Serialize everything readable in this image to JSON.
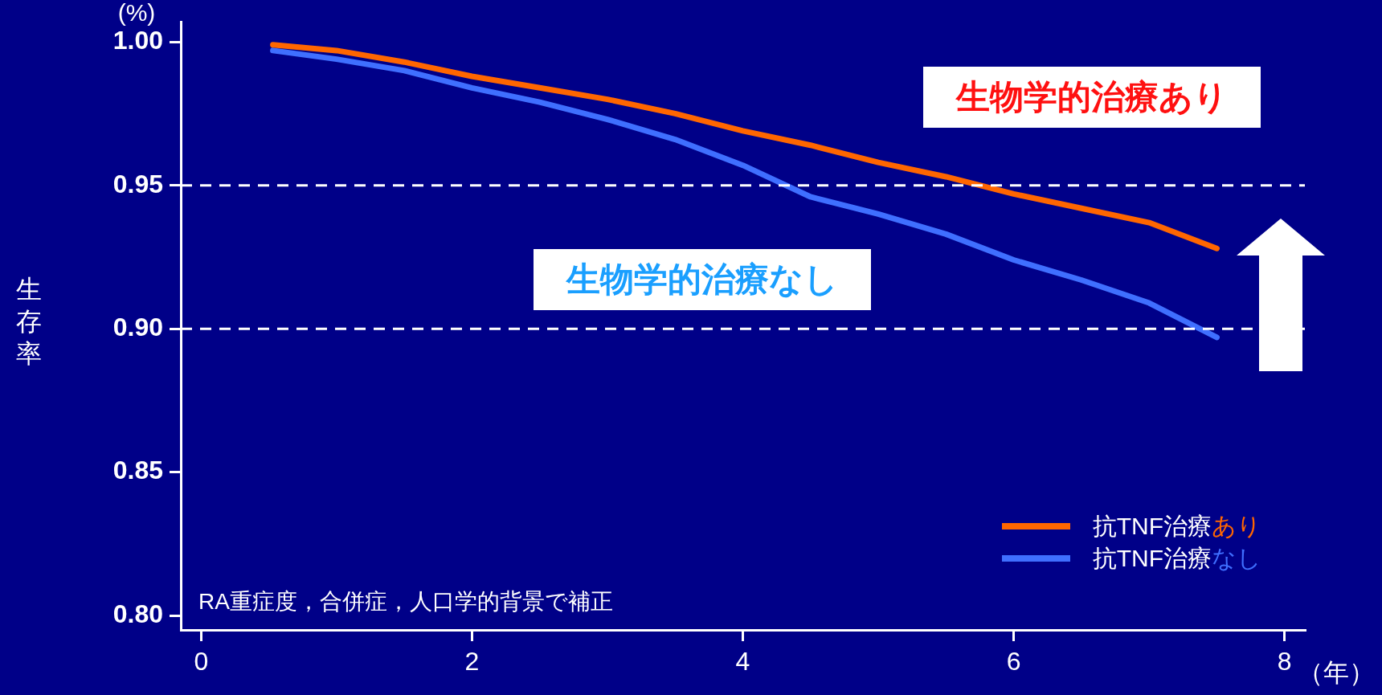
{
  "chart_data": {
    "type": "line",
    "ylabel": "生存率",
    "xlabel": "（年）",
    "x": [
      0.53,
      1.0,
      1.5,
      2,
      2.5,
      3,
      3.5,
      4,
      4.5,
      5,
      5.5,
      6,
      6.5,
      7,
      7.5
    ],
    "series": [
      {
        "name": "抗TNF治療あり",
        "color": "#ff6600",
        "values": [
          0.999,
          0.997,
          0.993,
          0.988,
          0.984,
          0.98,
          0.975,
          0.969,
          0.964,
          0.958,
          0.953,
          0.947,
          0.942,
          0.937,
          0.928
        ]
      },
      {
        "name": "抗TNF治療なし",
        "color": "#3f6fff",
        "values": [
          0.997,
          0.994,
          0.99,
          0.984,
          0.979,
          0.973,
          0.966,
          0.957,
          0.946,
          0.94,
          0.933,
          0.924,
          0.917,
          0.909,
          0.897
        ]
      }
    ],
    "xlim": [
      -0.15,
      8.15
    ],
    "xticks": [
      0,
      2,
      4,
      6,
      8
    ],
    "ylim": [
      0.795,
      1.007
    ],
    "yticks": [
      {
        "value": 0.8,
        "label": "0.80"
      },
      {
        "value": 0.85,
        "label": "0.85"
      },
      {
        "value": 0.9,
        "label": "0.90"
      },
      {
        "value": 0.95,
        "label": "0.95"
      },
      {
        "value": 1.0,
        "label": "1.00"
      }
    ],
    "ref_lines": [
      {
        "axis": "y",
        "value": 0.95,
        "color": "#ffffff",
        "line_style": "dashed"
      },
      {
        "axis": "y",
        "value": 0.9,
        "color": "#ffffff",
        "line_style": "dashed"
      }
    ],
    "annotations": [
      "(%)",
      "RA重症度，合併症，人口学的背景で補正",
      "生物学的治療あり",
      "生物学的治療なし"
    ],
    "legend": "bottom right",
    "grid": false,
    "marker": "none",
    "line_style": "solid"
  }
}
